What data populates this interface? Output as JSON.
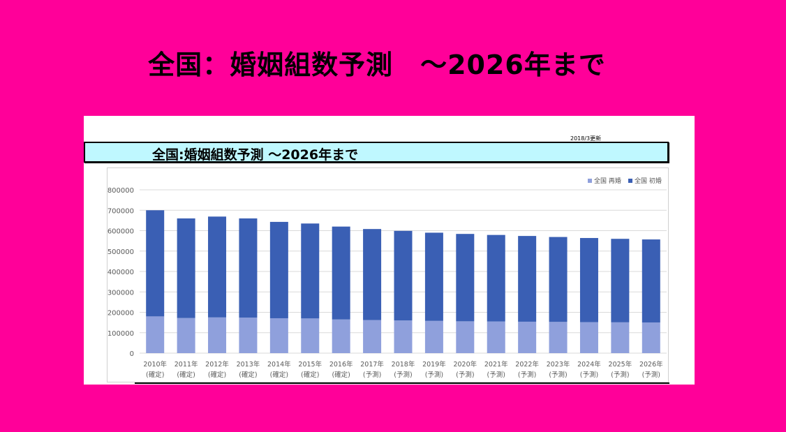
{
  "title": "全国：婚姻組数予測　～2026年まで",
  "panel": {
    "updated": "2018/3更新",
    "banner": "全国:婚姻組数予測 ～2026年まで"
  },
  "colors": {
    "background": "#ff0099",
    "remarriage": "#8fa0dc",
    "first_marriage": "#3a5fb4",
    "banner_bg": "#bff8ff"
  },
  "chart_data": {
    "type": "bar",
    "stacked": true,
    "categories": [
      [
        "2010年",
        "(確定)"
      ],
      [
        "2011年",
        "(確定)"
      ],
      [
        "2012年",
        "(確定)"
      ],
      [
        "2013年",
        "(確定)"
      ],
      [
        "2014年",
        "(確定)"
      ],
      [
        "2015年",
        "(確定)"
      ],
      [
        "2016年",
        "(確定)"
      ],
      [
        "2017年",
        "(予測)"
      ],
      [
        "2018年",
        "(予測)"
      ],
      [
        "2019年",
        "(予測)"
      ],
      [
        "2020年",
        "(予測)"
      ],
      [
        "2021年",
        "(予測)"
      ],
      [
        "2022年",
        "(予測)"
      ],
      [
        "2023年",
        "(予測)"
      ],
      [
        "2024年",
        "(予測)"
      ],
      [
        "2025年",
        "(予測)"
      ],
      [
        "2026年",
        "(予測)"
      ]
    ],
    "series": [
      {
        "name": "全国 再婚",
        "color": "#8fa0dc",
        "values": [
          180000,
          172000,
          175000,
          174000,
          171000,
          170000,
          165000,
          162000,
          160000,
          158000,
          156000,
          155000,
          154000,
          153000,
          152000,
          151000,
          150000
        ]
      },
      {
        "name": "全国 初婚",
        "color": "#3a5fb4",
        "values": [
          520000,
          488000,
          494000,
          486000,
          472000,
          465000,
          455000,
          446000,
          439000,
          432000,
          428000,
          424000,
          420000,
          416000,
          412000,
          409000,
          407000
        ]
      }
    ],
    "ylim": [
      0,
      800000
    ],
    "yticks": [
      "0",
      "100000",
      "200000",
      "300000",
      "400000",
      "500000",
      "600000",
      "700000",
      "800000"
    ],
    "grid": true,
    "legend_position": "top-right"
  }
}
